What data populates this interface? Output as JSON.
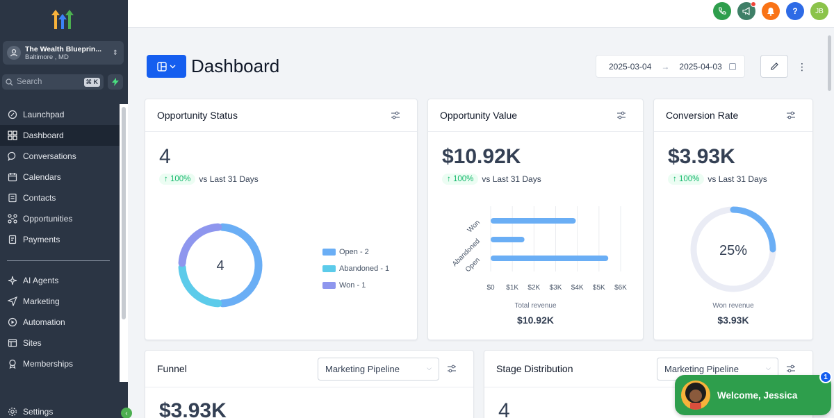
{
  "account": {
    "name": "The Wealth Blueprin...",
    "location": "Baltimore , MD"
  },
  "search": {
    "placeholder": "Search",
    "shortcut": "⌘ K"
  },
  "nav": {
    "items": [
      {
        "label": "Launchpad",
        "icon": "rocket-icon"
      },
      {
        "label": "Dashboard",
        "icon": "grid-icon",
        "active": true
      },
      {
        "label": "Conversations",
        "icon": "chat-icon"
      },
      {
        "label": "Calendars",
        "icon": "calendar-icon"
      },
      {
        "label": "Contacts",
        "icon": "contacts-icon"
      },
      {
        "label": "Opportunities",
        "icon": "opportunities-icon"
      },
      {
        "label": "Payments",
        "icon": "payments-icon"
      }
    ],
    "items2": [
      {
        "label": "AI Agents",
        "icon": "sparkle-icon"
      },
      {
        "label": "Marketing",
        "icon": "send-icon"
      },
      {
        "label": "Automation",
        "icon": "play-icon"
      },
      {
        "label": "Sites",
        "icon": "sites-icon"
      },
      {
        "label": "Memberships",
        "icon": "membership-icon"
      }
    ],
    "settings": "Settings"
  },
  "topbar": {
    "avatar_initials": "JB",
    "help": "?"
  },
  "page": {
    "title": "Dashboard",
    "date_from": "2025-03-04",
    "date_to": "2025-04-03"
  },
  "cards": {
    "opportunity_status": {
      "title": "Opportunity Status",
      "value": "4",
      "trend": "↑ 100%",
      "trend_text": "vs Last 31 Days",
      "center": "4",
      "legend": [
        "Open - 2",
        "Abandoned - 1",
        "Won - 1"
      ]
    },
    "opportunity_value": {
      "title": "Opportunity Value",
      "value": "$10.92K",
      "trend": "↑ 100%",
      "trend_text": "vs Last 31 Days",
      "sub_label": "Total revenue",
      "sub_value": "$10.92K"
    },
    "conversion_rate": {
      "title": "Conversion Rate",
      "value": "$3.93K",
      "trend": "↑ 100%",
      "trend_text": "vs Last 31 Days",
      "center": "25%",
      "sub_label": "Won revenue",
      "sub_value": "$3.93K"
    },
    "funnel": {
      "title": "Funnel",
      "pipeline": "Marketing Pipeline",
      "value": "$3.93K"
    },
    "stage_distribution": {
      "title": "Stage Distribution",
      "pipeline": "Marketing Pipeline",
      "value": "4"
    }
  },
  "chart_data": [
    {
      "type": "pie",
      "categories": [
        "Open",
        "Abandoned",
        "Won"
      ],
      "values": [
        2,
        1,
        1
      ],
      "colors": [
        "#6aaef5",
        "#5ccbea",
        "#8e96ee"
      ]
    },
    {
      "type": "bar",
      "orientation": "horizontal",
      "categories": [
        "Won",
        "Abandoned",
        "Open"
      ],
      "values": [
        3930,
        1560,
        5430
      ],
      "xticks": [
        "$0",
        "$1K",
        "$2K",
        "$3K",
        "$4K",
        "$5K",
        "$6K"
      ],
      "xlim": [
        0,
        6000
      ],
      "xlabel": "",
      "ylabel": "",
      "color": "#6aaef5",
      "grid": true
    },
    {
      "type": "pie",
      "categories": [
        "Won",
        "Other"
      ],
      "values": [
        25,
        75
      ],
      "colors": [
        "#6aaef5",
        "#eaecf5"
      ]
    }
  ],
  "welcome": {
    "text": "Welcome, Jessica",
    "badge": "1"
  },
  "colors": {
    "sidebar": "#2b3544",
    "accent": "#155eef",
    "success": "#12b76a"
  }
}
